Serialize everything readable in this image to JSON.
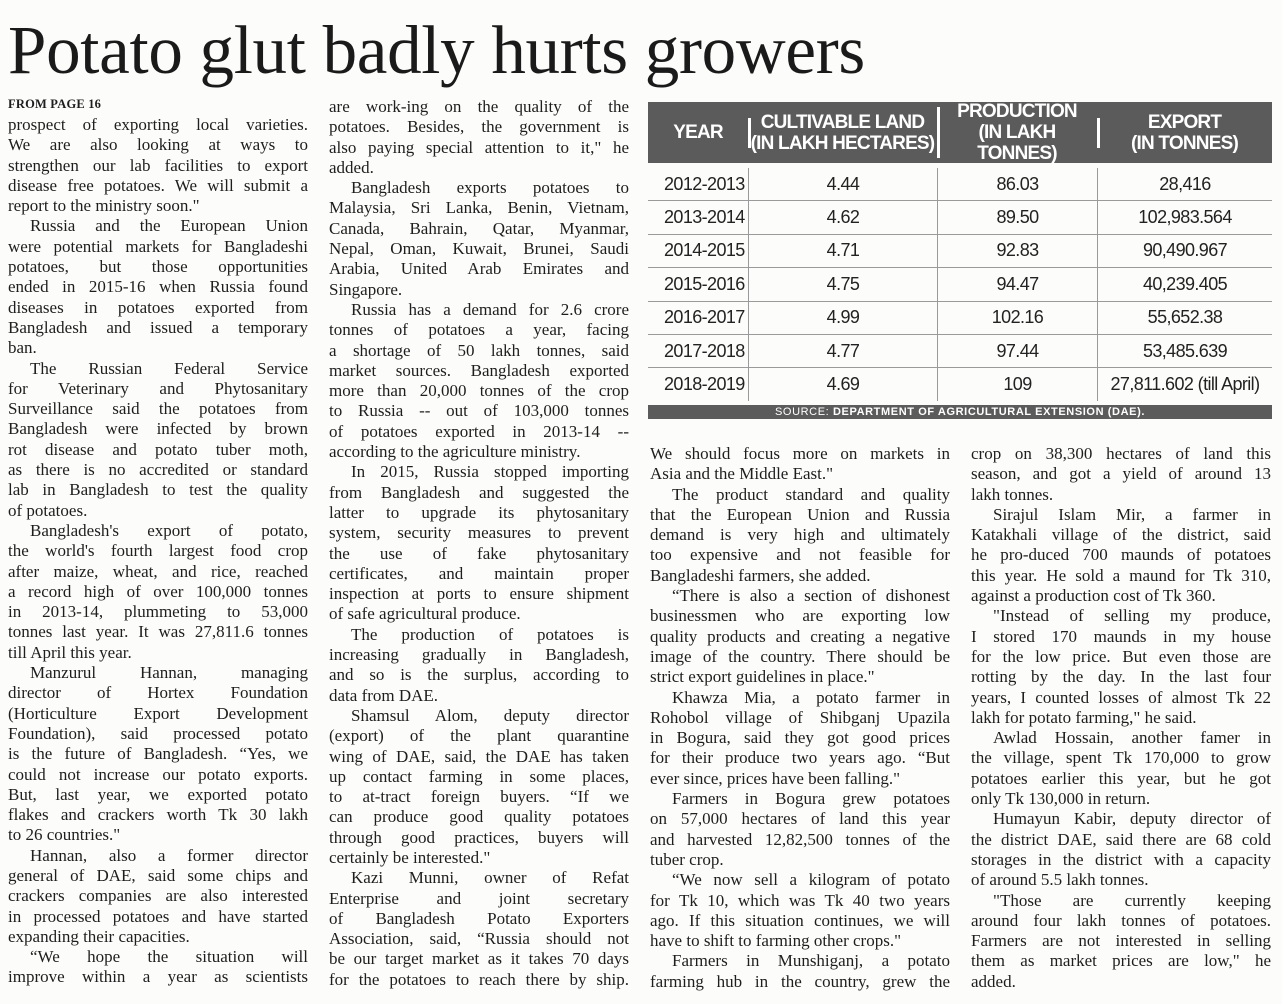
{
  "headline": "Potato glut badly hurts growers",
  "kicker": "FROM PAGE 16",
  "columns": [
    [
      {
        "cont": true,
        "lines": [
          "prospect of exporting local varieties.",
          "We are also looking at ways to",
          "strengthen our lab facilities to export",
          "disease free potatoes. We will submit a",
          "report to the ministry soon.\""
        ]
      },
      {
        "lines": [
          "Russia and the European Union",
          "were potential markets for Bangladeshi",
          "potatoes, but those opportunities",
          "ended in 2015-16 when Russia found",
          "diseases in potatoes exported from",
          "Bangladesh and issued a temporary",
          "ban."
        ]
      },
      {
        "lines": [
          "The Russian Federal Service",
          "for Veterinary and Phytosanitary",
          "Surveillance said the potatoes from",
          "Bangladesh were infected by brown",
          "rot disease and potato tuber moth,",
          "as there is no accredited or standard",
          "lab in Bangladesh to test the quality",
          "of potatoes."
        ]
      },
      {
        "lines": [
          "Bangladesh's export of potato,",
          "the world's fourth largest food crop",
          "after maize, wheat, and rice, reached",
          "a record high of over 100,000 tonnes",
          "in 2013-14, plummeting to 53,000",
          "tonnes last year. It was 27,811.6 tonnes",
          "till April this year."
        ]
      },
      {
        "lines": [
          "Manzurul Hannan, managing",
          "director of Hortex Foundation",
          "(Horticulture Export Development",
          "Foundation), said processed potato",
          "is the future of Bangladesh. “Yes, we",
          "could not increase our potato exports.",
          "But, last year, we exported potato",
          "flakes and crackers worth Tk 30 lakh",
          "to 26 countries.\""
        ]
      },
      {
        "lines": [
          "Hannan, also a former director",
          "general of DAE, said some chips and",
          "crackers companies are also interested",
          "in processed potatoes and have started",
          "expanding their capacities."
        ]
      },
      {
        "open": true,
        "lines": [
          "“We hope the situation will",
          "improve within a year as scientists"
        ]
      }
    ],
    [
      {
        "cont": true,
        "lines": [
          "are work-ing on the quality of the",
          "potatoes. Besides, the government is",
          "also paying special attention to it,\" he",
          "added."
        ]
      },
      {
        "lines": [
          "Bangladesh exports potatoes to",
          "Malaysia, Sri Lanka, Benin, Vietnam,",
          "Canada, Bahrain, Qatar, Myanmar,",
          "Nepal, Oman, Kuwait, Brunei, Saudi",
          "Arabia, United Arab Emirates and",
          "Singapore."
        ]
      },
      {
        "lines": [
          "Russia has a demand for 2.6 crore",
          "tonnes of potatoes a year, facing",
          "a shortage of 50 lakh tonnes, said",
          "market sources. Bangladesh exported",
          "more than 20,000 tonnes of the crop",
          "to Russia -- out of 103,000 tonnes",
          "of potatoes exported in 2013-14 --",
          "according to the agriculture ministry."
        ]
      },
      {
        "lines": [
          "In 2015, Russia stopped importing",
          "from Bangladesh and suggested the",
          "latter to upgrade its phytosanitary",
          "system, security measures to prevent",
          "the use of fake phytosanitary",
          "certificates, and maintain proper",
          "inspection at ports to ensure shipment",
          "of safe agricultural produce."
        ]
      },
      {
        "lines": [
          "The production of potatoes is",
          "increasing gradually in Bangladesh,",
          "and so is the surplus, according to",
          "data from DAE."
        ]
      },
      {
        "lines": [
          "Shamsul Alom, deputy director",
          "(export) of the plant quarantine",
          "wing of DAE, said, the DAE has taken",
          "up contact farming in some places,",
          "to at-tract foreign buyers. “If we",
          "can produce good quality potatoes",
          "through good practices, buyers will",
          "certainly be interested.\""
        ]
      },
      {
        "open": true,
        "lines": [
          "Kazi Munni, owner of Refat",
          "Enterprise and joint secretary",
          "of Bangladesh Potato Exporters",
          "Association, said, “Russia should not",
          "be our target market as it takes 70 days",
          "for the potatoes to reach there by ship."
        ]
      }
    ],
    [
      {
        "cont": true,
        "lines": [
          "We should focus more on markets in",
          "Asia and the Middle East.\""
        ]
      },
      {
        "lines": [
          "The product standard and quality",
          "that the European Union and Russia",
          "demand is very high and ultimately",
          "too expensive and not feasible for",
          "Bangladeshi farmers, she added."
        ]
      },
      {
        "lines": [
          "“There is also a section of dishonest",
          "businessmen who are exporting low",
          "quality products and creating a negative",
          "image of the country. There should be",
          "strict export guidelines in place.\""
        ]
      },
      {
        "lines": [
          "Khawza Mia, a potato farmer in",
          "Rohobol village of Shibganj Upazila",
          "in Bogura, said they got good prices",
          "for their produce two years ago. “But",
          "ever since, prices have been falling.\""
        ]
      },
      {
        "lines": [
          "Farmers in Bogura grew potatoes",
          "on 57,000 hectares of land this year",
          "and harvested 12,82,500 tonnes of the",
          "tuber crop."
        ]
      },
      {
        "lines": [
          "“We now sell a kilogram of potato",
          "for Tk 10, which was Tk 40 two years",
          "ago. If this situation continues, we will",
          "have to shift to farming other crops.\""
        ]
      },
      {
        "open": true,
        "lines": [
          "Farmers in Munshiganj, a potato",
          "farming hub in the country, grew the"
        ]
      }
    ],
    [
      {
        "cont": true,
        "lines": [
          "crop on 38,300 hectares of land this",
          "season, and got a yield of around 13",
          "lakh tonnes."
        ]
      },
      {
        "lines": [
          "Sirajul Islam Mir, a farmer in",
          "Katakhali village of the district, said",
          "he pro-duced 700 maunds of potatoes",
          "this year. He sold a maund for Tk 310,",
          "against a production cost of Tk 360."
        ]
      },
      {
        "lines": [
          "\"Instead of selling my produce,",
          "I stored 170 maunds in my house",
          "for the low price. But even those are",
          "rotting by the day. In the last four",
          "years, I counted losses of almost Tk 22",
          "lakh for potato farming,\" he said."
        ]
      },
      {
        "lines": [
          "Awlad Hossain, another famer in",
          "the village, spent Tk 170,000 to grow",
          "potatoes earlier this year, but he got",
          "only Tk 130,000 in return."
        ]
      },
      {
        "lines": [
          "Humayun Kabir, deputy director of",
          "the district DAE, said there are 68 cold",
          "storages in the district with a capacity",
          "of around 5.5 lakh tonnes."
        ]
      },
      {
        "lines": [
          "\"Those are currently keeping",
          "around four lakh tonnes of potatoes.",
          "Farmers are not interested in selling",
          "them as market prices are low,\" he",
          "added."
        ]
      }
    ]
  ],
  "table": {
    "headers": [
      {
        "title": "YEAR",
        "sub": ""
      },
      {
        "title": "CULTIVABLE LAND",
        "sub": "(IN LAKH HECTARES)"
      },
      {
        "title": "PRODUCTION",
        "sub": "(IN LAKH TONNES)"
      },
      {
        "title": "EXPORT",
        "sub": "(IN TONNES)"
      }
    ],
    "rows": [
      [
        "2012-2013",
        "4.44",
        "86.03",
        "28,416"
      ],
      [
        "2013-2014",
        "4.62",
        "89.50",
        "102,983.564"
      ],
      [
        "2014-2015",
        "4.71",
        "92.83",
        "90,490.967"
      ],
      [
        "2015-2016",
        "4.75",
        "94.47",
        "40,239.405"
      ],
      [
        "2016-2017",
        "4.99",
        "102.16",
        "55,652.38"
      ],
      [
        "2017-2018",
        "4.77",
        "97.44",
        "53,485.639"
      ],
      [
        "2018-2019",
        "4.69",
        "109",
        "27,811.602 (till April)"
      ]
    ],
    "source_label": "SOURCE:",
    "source_text": "DEPARTMENT OF AGRICULTURAL EXTENSION (DAE)."
  },
  "colors": {
    "table_header": "#5b5b5b",
    "text": "#1e1e1e",
    "paper": "#fcfcfa"
  }
}
